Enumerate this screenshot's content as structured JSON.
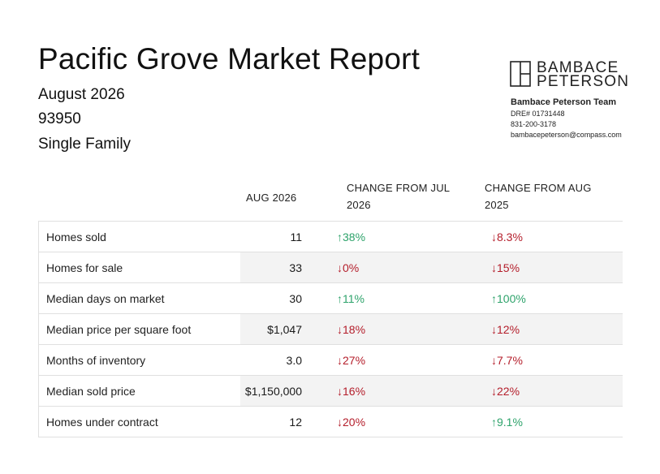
{
  "report": {
    "title": "Pacific Grove Market Report",
    "period": "August 2026",
    "zip": "93950",
    "property_type": "Single Family"
  },
  "brand": {
    "logo_line1": "BAMBACE",
    "logo_line2": "PETERSON",
    "team": "Bambace Peterson Team",
    "license": "DRE# 01731448",
    "phone": "831-200-3178",
    "email": "bambacepeterson@compass.com"
  },
  "colors": {
    "up": "#2ea36b",
    "down": "#b41e2b",
    "row_shade": "#f3f3f3"
  },
  "table": {
    "headers": {
      "current": "AUG 2026",
      "change_month": "CHANGE FROM JUL 2026",
      "change_year": "CHANGE FROM AUG 2025"
    },
    "rows": [
      {
        "label": "Homes sold",
        "value": "11",
        "mom": "↑38%",
        "mom_dir": "up",
        "yoy": "↓8.3%",
        "yoy_dir": "down"
      },
      {
        "label": "Homes for sale",
        "value": "33",
        "mom": "↓0%",
        "mom_dir": "down",
        "yoy": "↓15%",
        "yoy_dir": "down"
      },
      {
        "label": "Median days on market",
        "value": "30",
        "mom": "↑11%",
        "mom_dir": "up",
        "yoy": "↑100%",
        "yoy_dir": "up"
      },
      {
        "label": "Median price per square foot",
        "value": "$1,047",
        "mom": "↓18%",
        "mom_dir": "down",
        "yoy": "↓12%",
        "yoy_dir": "down"
      },
      {
        "label": "Months of inventory",
        "value": "3.0",
        "mom": "↓27%",
        "mom_dir": "down",
        "yoy": "↓7.7%",
        "yoy_dir": "down"
      },
      {
        "label": "Median sold price",
        "value": "$1,150,000",
        "mom": "↓16%",
        "mom_dir": "down",
        "yoy": "↓22%",
        "yoy_dir": "down"
      },
      {
        "label": "Homes under contract",
        "value": "12",
        "mom": "↓20%",
        "mom_dir": "down",
        "yoy": "↑9.1%",
        "yoy_dir": "up"
      }
    ]
  }
}
